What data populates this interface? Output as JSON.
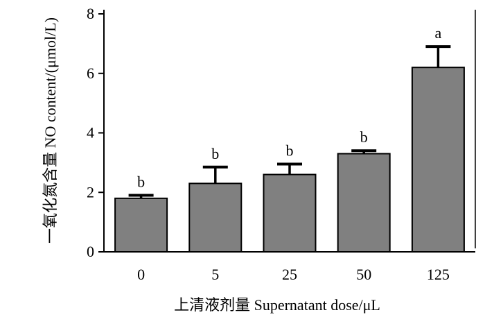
{
  "chart_data": {
    "type": "bar",
    "categories": [
      "0",
      "5",
      "25",
      "50",
      "125"
    ],
    "values": [
      1.8,
      2.3,
      2.6,
      3.3,
      6.2
    ],
    "error_plus": [
      0.1,
      0.55,
      0.35,
      0.1,
      0.7
    ],
    "significance": [
      "b",
      "b",
      "b",
      "b",
      "a"
    ],
    "xlabel": "上清液剂量  Supernatant dose/μL",
    "ylabel": "一氧化氮含量  NO content/(μmol/L)",
    "ylim": [
      0,
      8
    ],
    "yticks": [
      "0",
      "2",
      "4",
      "6",
      "8"
    ],
    "grid": false,
    "colors": {
      "bar": "#808080",
      "edge": "#000000"
    }
  }
}
